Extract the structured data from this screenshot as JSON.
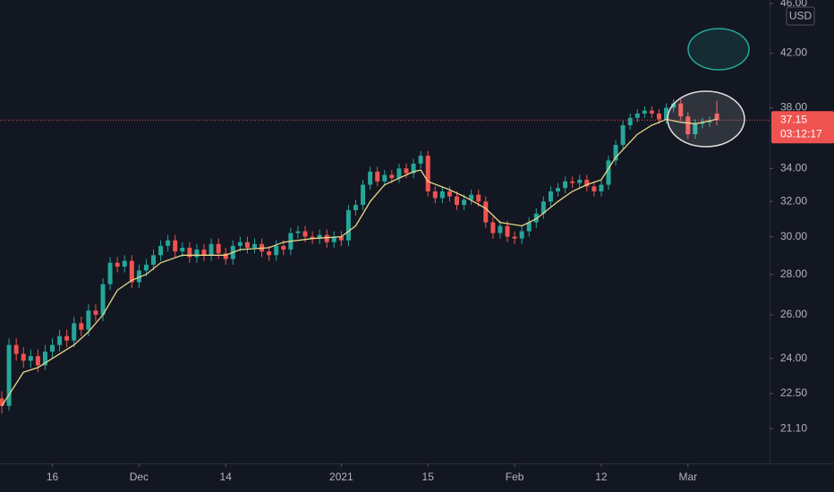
{
  "chart_data": {
    "type": "candlestick",
    "log_scale": true,
    "grid": false,
    "up_color": "#26a69a",
    "down_color": "#ef5350",
    "currency": "USD",
    "last_price": 37.15,
    "countdown": "03:12:17",
    "ylim": [
      19.8,
      46.3
    ],
    "yticks": [
      {
        "value": 21.1,
        "label": "21.10"
      },
      {
        "value": 22.5,
        "label": "22.50"
      },
      {
        "value": 24,
        "label": "24.00"
      },
      {
        "value": 26,
        "label": "26.00"
      },
      {
        "value": 28,
        "label": "28.00"
      },
      {
        "value": 30,
        "label": "30.00"
      },
      {
        "value": 32,
        "label": "32.00"
      },
      {
        "value": 34,
        "label": "34.00"
      },
      {
        "value": 38,
        "label": "38.00"
      },
      {
        "value": 42,
        "label": "42.00"
      },
      {
        "value": 46,
        "label": "46.00"
      }
    ],
    "xlim": [
      -0.25,
      106.3
    ],
    "xticks": [
      {
        "value": 7,
        "label": "16"
      },
      {
        "value": 19,
        "label": "Dec"
      },
      {
        "value": 31,
        "label": "14"
      },
      {
        "value": 47,
        "label": "2021"
      },
      {
        "value": 59,
        "label": "15"
      },
      {
        "value": 71,
        "label": "Feb"
      },
      {
        "value": 83,
        "label": "12"
      },
      {
        "value": 95,
        "label": "Mar"
      }
    ],
    "open": [
      22.3,
      22.0,
      24.6,
      24.2,
      23.9,
      24.1,
      23.7,
      24.3,
      24.6,
      25.0,
      24.8,
      25.6,
      25.3,
      26.2,
      26.0,
      27.5,
      28.6,
      28.4,
      28.7,
      27.6,
      28.2,
      28.5,
      29.0,
      29.5,
      29.8,
      29.2,
      29.4,
      28.9,
      29.3,
      29.0,
      29.6,
      29.1,
      28.8,
      29.5,
      29.7,
      29.4,
      29.6,
      29.2,
      29.0,
      29.5,
      29.3,
      30.2,
      30.3,
      30.0,
      29.9,
      30.1,
      29.7,
      30.0,
      29.8,
      31.5,
      31.8,
      33.0,
      33.8,
      33.2,
      33.6,
      33.4,
      34.0,
      33.7,
      34.3,
      34.8,
      32.6,
      32.2,
      32.6,
      32.3,
      31.8,
      32.1,
      32.4,
      32.0,
      30.8,
      30.2,
      30.6,
      30.0,
      29.9,
      30.3,
      30.8,
      31.3,
      32.0,
      32.6,
      32.8,
      33.2,
      33.1,
      33.3,
      32.9,
      32.6,
      33.0,
      34.5,
      35.5,
      36.8,
      37.3,
      37.6,
      37.8,
      37.6,
      37.2,
      38.0,
      38.3,
      37.4,
      36.2,
      36.9,
      37.0,
      37.6
    ],
    "high": [
      22.6,
      24.9,
      24.9,
      24.5,
      24.4,
      24.4,
      24.6,
      24.9,
      25.3,
      25.3,
      25.9,
      25.9,
      26.5,
      26.5,
      27.8,
      28.9,
      28.9,
      29.0,
      29.0,
      28.5,
      28.8,
      29.3,
      29.8,
      30.1,
      30.1,
      29.7,
      29.7,
      29.6,
      29.6,
      29.9,
      29.9,
      29.4,
      29.8,
      30.0,
      30.0,
      29.9,
      29.9,
      29.5,
      29.8,
      29.8,
      30.5,
      30.6,
      30.6,
      30.3,
      30.4,
      30.4,
      30.3,
      30.3,
      31.8,
      32.1,
      33.3,
      34.1,
      34.1,
      33.9,
      33.9,
      34.3,
      34.3,
      34.6,
      35.1,
      35.1,
      32.9,
      32.9,
      32.9,
      32.6,
      32.4,
      32.7,
      32.7,
      32.3,
      31.1,
      30.9,
      30.9,
      30.3,
      30.6,
      31.1,
      31.6,
      32.3,
      32.9,
      33.1,
      33.5,
      33.5,
      33.6,
      33.6,
      33.2,
      33.3,
      34.8,
      35.8,
      37.1,
      37.6,
      37.9,
      38.1,
      38.1,
      37.9,
      38.3,
      38.6,
      38.6,
      37.7,
      37.2,
      37.3,
      37.4,
      38.5
    ],
    "low": [
      21.7,
      21.8,
      23.9,
      23.6,
      23.6,
      23.4,
      23.5,
      24.0,
      24.3,
      24.5,
      24.5,
      25.0,
      25.0,
      25.7,
      25.7,
      27.2,
      28.1,
      28.1,
      27.3,
      27.3,
      27.9,
      28.2,
      28.7,
      29.2,
      28.9,
      28.9,
      28.6,
      28.6,
      28.7,
      28.7,
      28.8,
      28.5,
      28.5,
      29.2,
      29.1,
      29.1,
      28.9,
      28.7,
      28.7,
      29.0,
      29.0,
      29.9,
      29.7,
      29.6,
      29.6,
      29.4,
      29.4,
      29.5,
      29.5,
      31.2,
      31.5,
      32.7,
      32.9,
      32.9,
      33.1,
      33.1,
      33.4,
      33.4,
      34.0,
      32.3,
      31.9,
      31.9,
      32.0,
      31.5,
      31.5,
      31.8,
      31.7,
      30.5,
      29.9,
      29.9,
      29.7,
      29.6,
      29.6,
      30.0,
      30.5,
      31.0,
      31.7,
      32.3,
      32.5,
      32.8,
      32.8,
      32.6,
      32.3,
      32.3,
      32.7,
      34.2,
      35.2,
      36.5,
      37.0,
      37.3,
      37.3,
      36.9,
      36.9,
      37.7,
      37.1,
      35.9,
      35.9,
      36.6,
      36.7,
      36.8
    ],
    "close": [
      22.0,
      24.6,
      24.2,
      23.9,
      24.1,
      23.7,
      24.3,
      24.6,
      25.0,
      24.8,
      25.6,
      25.3,
      26.2,
      26.0,
      27.5,
      28.6,
      28.4,
      28.7,
      27.6,
      28.2,
      28.5,
      29.0,
      29.5,
      29.8,
      29.2,
      29.4,
      28.9,
      29.3,
      29.0,
      29.6,
      29.1,
      28.8,
      29.5,
      29.7,
      29.4,
      29.6,
      29.2,
      29.0,
      29.5,
      29.3,
      30.2,
      30.3,
      30.0,
      29.9,
      30.1,
      29.7,
      30.0,
      29.8,
      31.5,
      31.8,
      33.0,
      33.8,
      33.2,
      33.6,
      33.4,
      34.0,
      33.7,
      34.3,
      34.8,
      32.6,
      32.2,
      32.6,
      32.3,
      31.8,
      32.1,
      32.4,
      32.0,
      30.8,
      30.2,
      30.6,
      30.0,
      29.9,
      30.3,
      30.8,
      31.3,
      32.0,
      32.6,
      32.8,
      33.2,
      33.1,
      33.3,
      32.9,
      32.6,
      33.0,
      34.5,
      35.5,
      36.8,
      37.3,
      37.6,
      37.8,
      37.6,
      37.2,
      38.0,
      38.3,
      37.4,
      36.2,
      36.9,
      37.0,
      37.1,
      37.15
    ],
    "ma": {
      "color": "#e8d68a",
      "x": [
        0,
        3,
        5,
        7,
        10,
        12,
        14,
        16,
        18,
        20,
        22,
        25,
        28,
        31,
        33,
        37,
        39,
        43,
        47,
        49,
        51,
        53,
        57,
        58,
        59,
        62,
        64,
        67,
        69,
        72,
        74,
        77,
        79,
        81,
        83,
        85,
        88,
        90,
        92,
        94,
        96,
        99
      ],
      "values": [
        22.0,
        23.4,
        23.6,
        24.0,
        24.6,
        25.2,
        26.0,
        27.2,
        27.7,
        28.0,
        28.6,
        29.0,
        29.0,
        29.0,
        29.3,
        29.4,
        29.7,
        29.9,
        30.0,
        30.6,
        32.0,
        33.0,
        33.8,
        33.9,
        33.2,
        32.7,
        32.3,
        31.6,
        30.8,
        30.6,
        31.0,
        32.0,
        32.6,
        33.0,
        33.3,
        34.7,
        36.2,
        36.8,
        37.2,
        37.0,
        36.9,
        37.2
      ]
    }
  }
}
